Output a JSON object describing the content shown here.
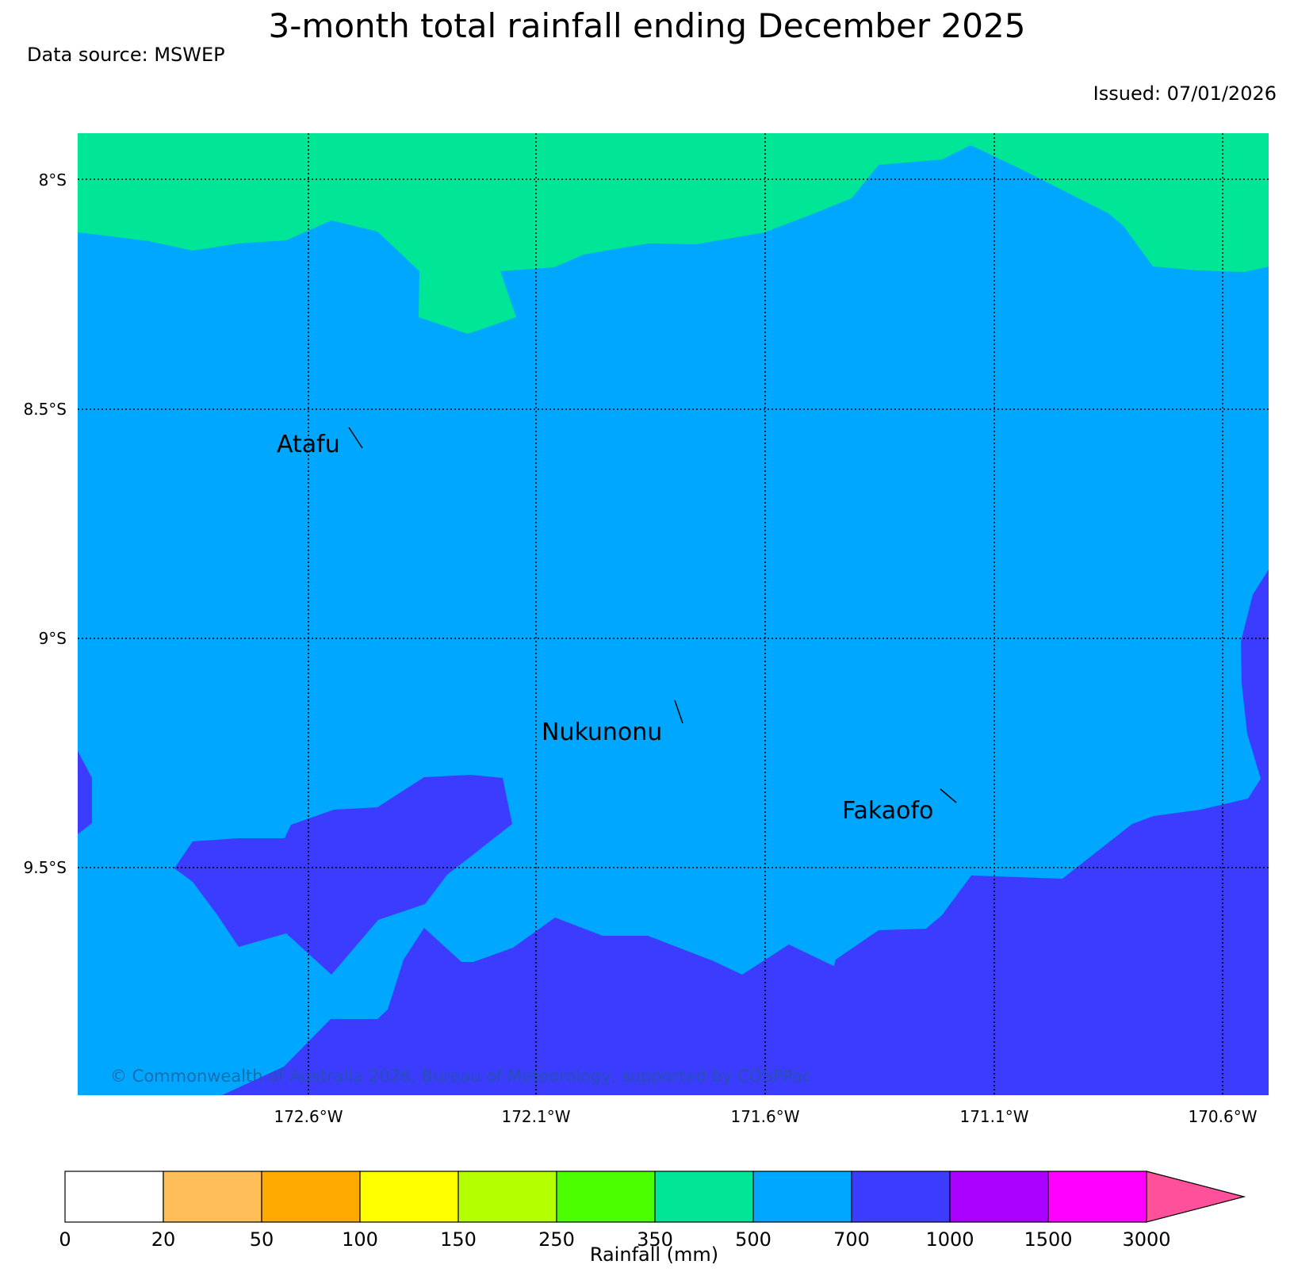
{
  "title": "3-month total rainfall ending December 2025",
  "data_source": "Data source: MSWEP",
  "issued": "Issued: 07/01/2026",
  "map": {
    "lat_labels": [
      "8°S",
      "8.5°S",
      "9°S",
      "9.5°S"
    ],
    "lon_labels": [
      "172.6°W",
      "172.1°W",
      "171.6°W",
      "171.1°W",
      "170.6°W"
    ],
    "places": [
      "Atafu",
      "Nukunonu",
      "Fakaofo"
    ],
    "copyright": "© Commonwealth of Australia 2026, Bureau of Meteorology, supported by COSPPac",
    "category_colors": {
      "350-500": "#00e697",
      "500-700": "#00a7ff",
      "700-1000": "#3c3cff"
    }
  },
  "colorbar": {
    "label": "Rainfall (mm)",
    "ticks": [
      "0",
      "20",
      "50",
      "100",
      "150",
      "250",
      "350",
      "500",
      "700",
      "1000",
      "1500",
      "3000"
    ],
    "colors": [
      "#ffffff",
      "#ffbe5a",
      "#ffaa00",
      "#ffff00",
      "#b4ff00",
      "#4bff00",
      "#00e697",
      "#00a7ff",
      "#3c3cff",
      "#aa00ff",
      "#ff00ff",
      "#ff509b"
    ]
  }
}
